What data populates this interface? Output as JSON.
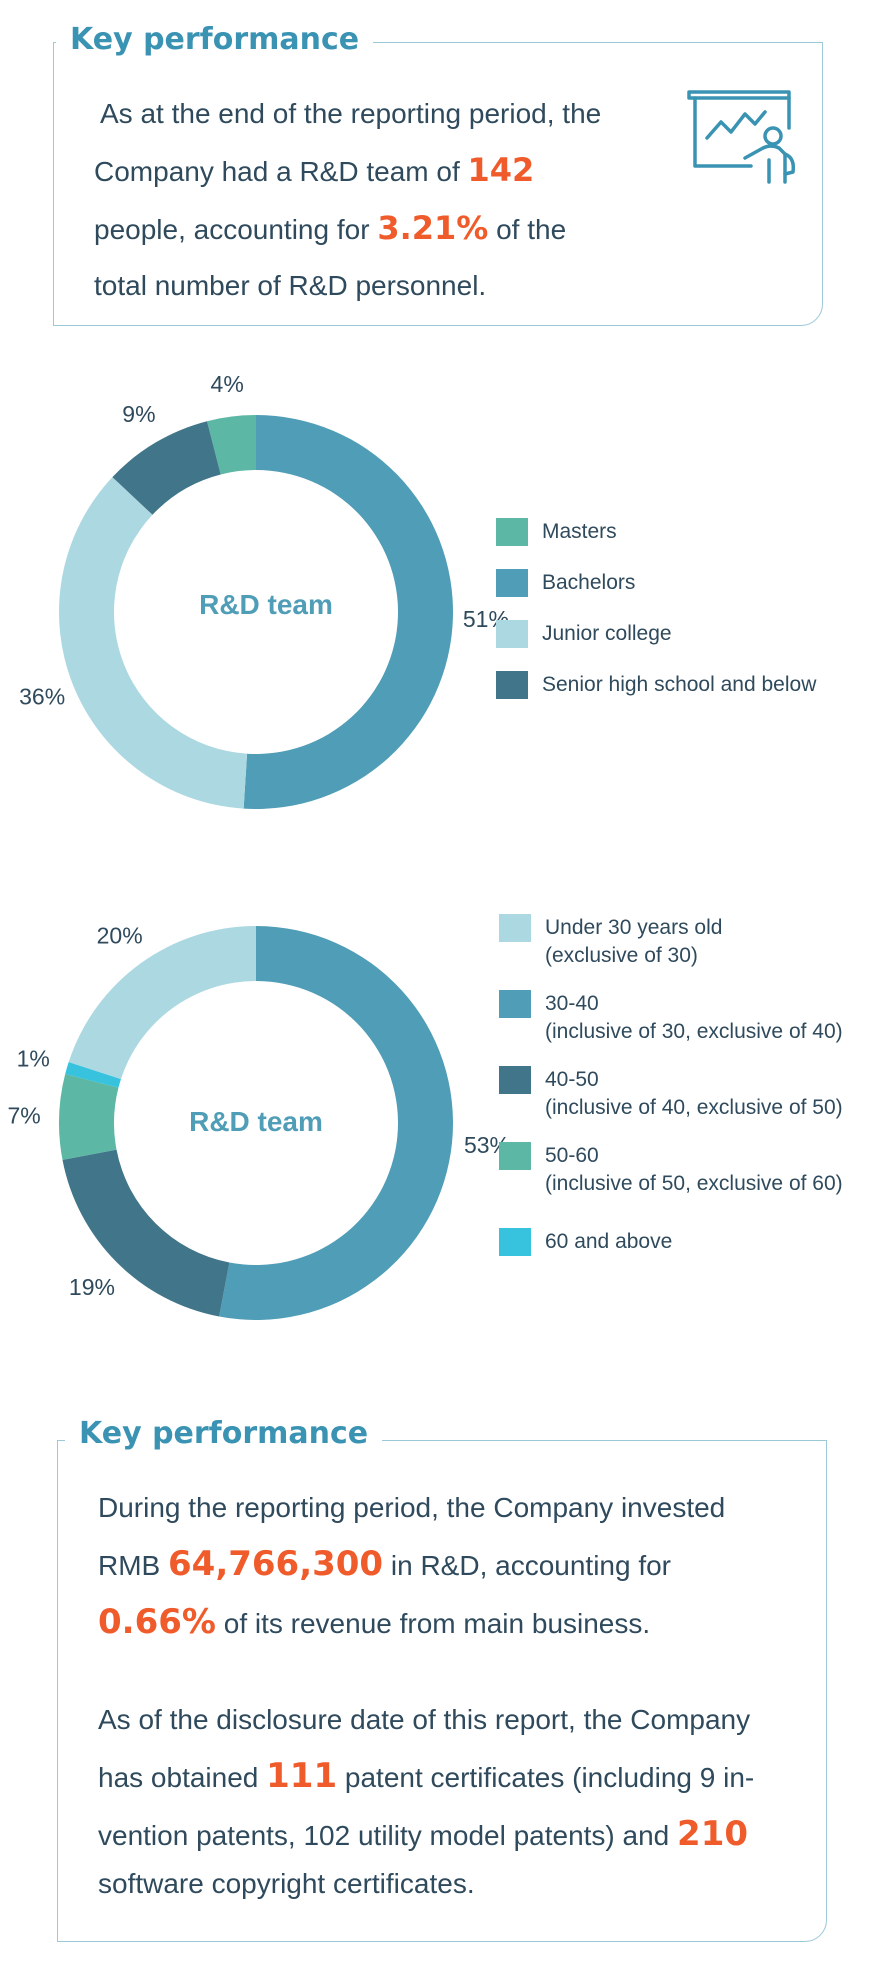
{
  "kp1": {
    "title": "Key performance",
    "l1": "As at the end of the reporting period, the",
    "l2_pre": "Company had a R&D team of ",
    "l2_num": "142",
    "l3_pre": "people, accounting for ",
    "l3_num": "3.21%",
    "l3_post": " of the",
    "l4": "total number of R&D personnel.",
    "icon": "presentation-chart-icon"
  },
  "chart_data": [
    {
      "type": "pie",
      "center_label": "R&D team",
      "categories": [
        "Masters",
        "Bachelors",
        "Junior college",
        "Senior high school and below"
      ],
      "values": [
        4,
        51,
        36,
        9
      ],
      "value_labels": [
        "4%",
        "51%",
        "36%",
        "9%"
      ],
      "colors": [
        "#5cb8a4",
        "#4f9db6",
        "#acd8e2",
        "#417589"
      ],
      "legend": [
        {
          "label": [
            "Masters"
          ]
        },
        {
          "label": [
            "Bachelors"
          ]
        },
        {
          "label": [
            "Junior college"
          ]
        },
        {
          "label": [
            "Senior high school and below"
          ]
        }
      ]
    },
    {
      "type": "pie",
      "center_label": "R&D team",
      "categories": [
        "Under 30 years old (exclusive of 30)",
        "30-40 (inclusive of 30, exclusive of 40)",
        "40-50 (inclusive of 40, exclusive of 50)",
        "50-60 (inclusive of 50, exclusive of 60)",
        "60 and above"
      ],
      "values": [
        20,
        53,
        19,
        7,
        1
      ],
      "value_labels": [
        "20%",
        "53%",
        "19%",
        "7%",
        "1%"
      ],
      "colors": [
        "#acd8e2",
        "#4f9db6",
        "#417589",
        "#5cb8a4",
        "#37c3de"
      ],
      "legend": [
        {
          "label": [
            "Under 30 years old",
            " (exclusive of 30)"
          ]
        },
        {
          "label": [
            "30-40",
            "(inclusive of 30, exclusive of 40)"
          ]
        },
        {
          "label": [
            "40-50",
            " (inclusive of 40, exclusive of 50)"
          ]
        },
        {
          "label": [
            "50-60",
            "(inclusive of 50, exclusive of 60)"
          ]
        },
        {
          "label": [
            "60 and above"
          ]
        }
      ]
    }
  ],
  "kp2": {
    "title": "Key performance",
    "p1_l1": "During the reporting period, the Company invested",
    "p1_l2_pre": "RMB ",
    "p1_l2_num": "64,766,300",
    "p1_l2_post": " in R&D, accounting for",
    "p1_l3_num": "0.66%",
    "p1_l3_post": " of its revenue from main business.",
    "p2_l1": "As of the disclosure date of this report, the Company",
    "p2_l2_pre": "has obtained ",
    "p2_l2_num": "111",
    "p2_l2_post": " patent certificates (including 9 in-",
    "p2_l3_pre": "vention patents, 102 utility model patents) and ",
    "p2_l3_num": "210",
    "p2_l4": "software copyright certificates."
  }
}
